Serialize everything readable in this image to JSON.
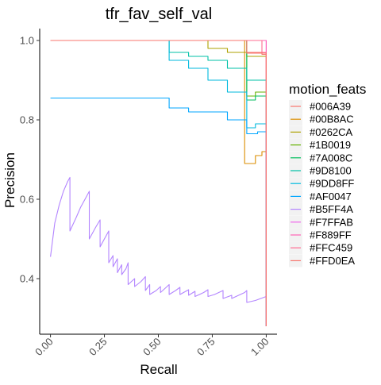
{
  "chart_data": {
    "type": "line",
    "title": "tfr_fav_self_val",
    "xlabel": "Recall",
    "ylabel": "Precision",
    "xlim": [
      -0.05,
      1.05
    ],
    "ylim": [
      0.26,
      1.03
    ],
    "x_ticks": [
      0,
      0.25,
      0.5,
      0.75,
      1
    ],
    "x_tick_labels": [
      "0.00",
      "0.25",
      "0.50",
      "0.75",
      "1.00"
    ],
    "y_ticks": [
      0.4,
      0.6,
      0.8,
      1.0
    ],
    "y_tick_labels": [
      "0.4",
      "0.6",
      "0.8",
      "1.0"
    ],
    "grid": false,
    "legend": {
      "title": "motion_feats",
      "position": "right"
    },
    "series": [
      {
        "name": "#006A39",
        "color": "#F8766D",
        "x": [
          0,
          0.91,
          0.91,
          0.98,
          0.98,
          1.0,
          1.0
        ],
        "y": [
          1.0,
          1.0,
          0.97,
          0.97,
          0.965,
          0.965,
          0.28
        ]
      },
      {
        "name": "#00B8AC",
        "color": "#DB8E00",
        "x": [
          0,
          0.9,
          0.9,
          0.95,
          0.95,
          0.98,
          0.98,
          1.0,
          1.0
        ],
        "y": [
          1.0,
          1.0,
          0.69,
          0.69,
          0.71,
          0.71,
          0.72,
          0.72,
          0.28
        ]
      },
      {
        "name": "#0262CA",
        "color": "#AEA200",
        "x": [
          0,
          0.73,
          0.73,
          0.82,
          0.82,
          0.91,
          0.91,
          1.0,
          1.0
        ],
        "y": [
          1.0,
          1.0,
          0.98,
          0.98,
          0.97,
          0.97,
          0.96,
          0.96,
          0.28
        ]
      },
      {
        "name": "#1B0019",
        "color": "#64B200",
        "x": [
          0,
          0.91,
          0.91,
          0.95,
          0.95,
          1.0,
          1.0
        ],
        "y": [
          1.0,
          1.0,
          0.86,
          0.86,
          0.87,
          0.87,
          0.28
        ]
      },
      {
        "name": "#7A008C",
        "color": "#00BD5C",
        "x": [
          0,
          0.91,
          0.91,
          0.95,
          0.95,
          1.0,
          1.0
        ],
        "y": [
          1.0,
          1.0,
          0.85,
          0.85,
          0.86,
          0.86,
          0.28
        ]
      },
      {
        "name": "#9D8100",
        "color": "#00C1A7",
        "x": [
          0,
          0.55,
          0.55,
          0.64,
          0.64,
          0.73,
          0.73,
          0.82,
          0.82,
          0.91,
          0.91,
          1.0,
          1.0
        ],
        "y": [
          1.0,
          1.0,
          0.97,
          0.97,
          0.96,
          0.96,
          0.95,
          0.95,
          0.93,
          0.93,
          0.9,
          0.9,
          0.28
        ]
      },
      {
        "name": "#9DD8FF",
        "color": "#00BADE",
        "x": [
          0,
          0.55,
          0.55,
          0.64,
          0.64,
          0.73,
          0.73,
          0.82,
          0.82,
          0.91,
          0.91,
          0.95,
          0.95,
          1.0,
          1.0
        ],
        "y": [
          1.0,
          1.0,
          0.95,
          0.95,
          0.93,
          0.93,
          0.9,
          0.9,
          0.87,
          0.87,
          0.78,
          0.78,
          0.79,
          0.79,
          0.28
        ]
      },
      {
        "name": "#AF0047",
        "color": "#00A6FF",
        "x": [
          0,
          0.55,
          0.55,
          0.64,
          0.64,
          0.82,
          0.82,
          0.91,
          0.91,
          0.96,
          0.96,
          1.0,
          1.0
        ],
        "y": [
          0.855,
          0.855,
          0.83,
          0.83,
          0.82,
          0.82,
          0.8,
          0.8,
          0.765,
          0.765,
          0.77,
          0.77,
          0.28
        ]
      },
      {
        "name": "#B5FF4A",
        "color": "#B385FF",
        "x": [
          0,
          0.02,
          0.04,
          0.06,
          0.08,
          0.09,
          0.09,
          0.12,
          0.14,
          0.16,
          0.18,
          0.18,
          0.21,
          0.23,
          0.23,
          0.25,
          0.27,
          0.27,
          0.29,
          0.29,
          0.31,
          0.31,
          0.33,
          0.33,
          0.35,
          0.36,
          0.36,
          0.39,
          0.39,
          0.42,
          0.44,
          0.44,
          0.46,
          0.46,
          0.49,
          0.51,
          0.51,
          0.53,
          0.55,
          0.55,
          0.58,
          0.6,
          0.6,
          0.64,
          0.64,
          0.67,
          0.67,
          0.71,
          0.73,
          0.73,
          0.76,
          0.8,
          0.8,
          0.84,
          0.84,
          0.9,
          0.91,
          0.91,
          0.95,
          1.0
        ],
        "y": [
          0.455,
          0.54,
          0.585,
          0.62,
          0.645,
          0.655,
          0.52,
          0.555,
          0.58,
          0.6,
          0.62,
          0.5,
          0.53,
          0.548,
          0.48,
          0.5,
          0.52,
          0.44,
          0.458,
          0.43,
          0.45,
          0.415,
          0.435,
          0.41,
          0.425,
          0.44,
          0.385,
          0.4,
          0.38,
          0.393,
          0.405,
          0.37,
          0.385,
          0.36,
          0.37,
          0.38,
          0.365,
          0.375,
          0.385,
          0.36,
          0.37,
          0.378,
          0.36,
          0.372,
          0.358,
          0.368,
          0.355,
          0.365,
          0.372,
          0.355,
          0.36,
          0.37,
          0.35,
          0.358,
          0.35,
          0.365,
          0.37,
          0.34,
          0.345,
          0.355
        ]
      },
      {
        "name": "#F7FFAB",
        "color": "#EF67EB",
        "x": [
          0,
          1.0,
          1.0
        ],
        "y": [
          1.0,
          1.0,
          0.28
        ]
      },
      {
        "name": "#F889FF",
        "color": "#FF63B6",
        "x": [
          0,
          1.0,
          1.0
        ],
        "y": [
          1.0,
          1.0,
          0.28
        ]
      },
      {
        "name": "#FFC459",
        "color": "#FF6C91",
        "x": [
          0,
          0.98,
          0.98,
          1.0,
          1.0
        ],
        "y": [
          1.0,
          1.0,
          0.97,
          0.97,
          0.28
        ]
      },
      {
        "name": "#FFD0EA",
        "color": "#F8766D",
        "x": [
          0,
          0.91,
          0.91,
          1.0,
          1.0
        ],
        "y": [
          1.0,
          1.0,
          0.968,
          0.968,
          0.28
        ]
      }
    ]
  }
}
